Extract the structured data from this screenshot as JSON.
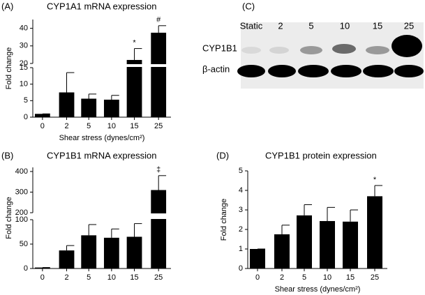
{
  "chart_data": [
    {
      "type": "bar",
      "panel": "(A)",
      "title": "CYP1A1 mRNA expression",
      "xlabel": "Shear stress (dynes/cm²)",
      "ylabel": "Fold change",
      "categories": [
        "0",
        "2",
        "5",
        "10",
        "15",
        "25"
      ],
      "values": [
        1,
        7.5,
        5.6,
        5.3,
        22,
        37.5
      ],
      "errors": [
        0,
        6,
        1.4,
        1.3,
        6.5,
        4
      ],
      "annotations": [
        null,
        null,
        null,
        null,
        "*",
        "#"
      ],
      "color": "#000000",
      "ylim": [
        0,
        45
      ],
      "ybreak": [
        15,
        20
      ],
      "yticks": [
        0,
        5,
        10,
        15,
        20,
        30,
        40
      ]
    },
    {
      "type": "bar",
      "panel": "(B)",
      "title": "CYP1B1 mRNA expression",
      "ylabel": "Fold change",
      "categories": [
        "0",
        "2",
        "5",
        "10",
        "15",
        "25"
      ],
      "values": [
        2,
        37,
        68,
        63,
        65,
        310
      ],
      "errors": [
        0,
        10,
        22,
        18,
        27,
        70
      ],
      "annotations": [
        null,
        null,
        null,
        null,
        null,
        "‡"
      ],
      "color": "#000000",
      "ylim": [
        0,
        420
      ],
      "ybreak": [
        100,
        200
      ],
      "yticks": [
        0,
        50,
        100,
        200,
        300,
        400
      ]
    },
    {
      "type": "bar",
      "panel": "(D)",
      "title": "CYP1B1 protein expression",
      "xlabel": "Shear stress (dynes/cm²)",
      "ylabel": "Fold change",
      "categories": [
        "0",
        "2",
        "5",
        "10",
        "15",
        "25"
      ],
      "values": [
        1,
        1.75,
        2.72,
        2.43,
        2.4,
        3.7
      ],
      "errors": [
        0,
        0.47,
        0.55,
        0.7,
        0.6,
        0.55
      ],
      "annotations": [
        null,
        null,
        null,
        null,
        null,
        "*"
      ],
      "color": "#000000",
      "ylim": [
        0,
        5
      ],
      "yticks": [
        0,
        1,
        2,
        3,
        4,
        5
      ]
    }
  ],
  "blot": {
    "panel": "(C)",
    "lanes": [
      "Static",
      "2",
      "5",
      "10",
      "15",
      "25"
    ],
    "rows": [
      "CYP1B1",
      "β-actin"
    ]
  }
}
